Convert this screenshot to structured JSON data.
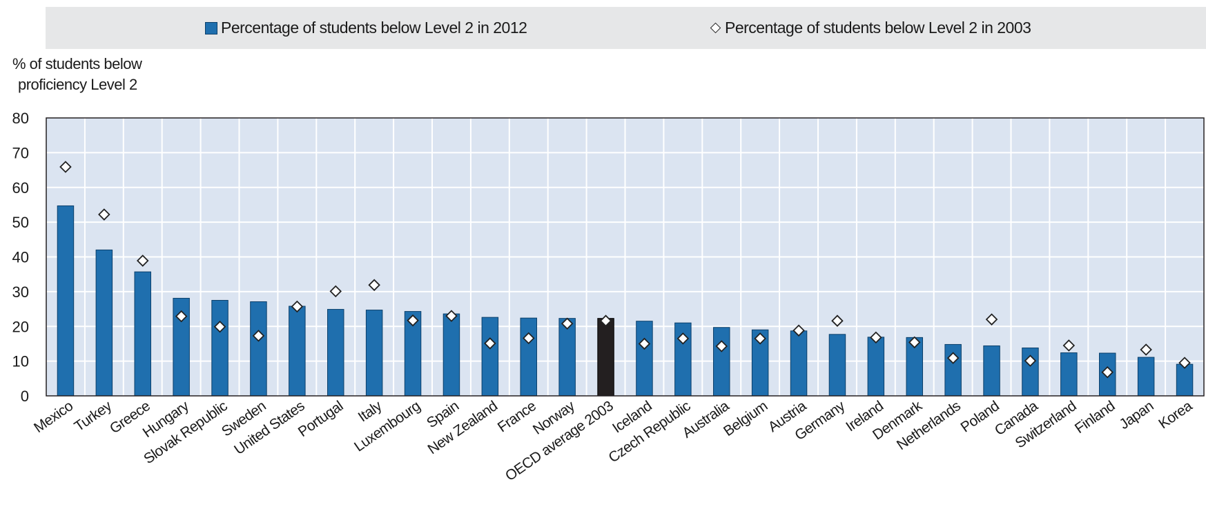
{
  "legend": {
    "series_2012": "Percentage of students below Level 2 in 2012",
    "series_2003": "Percentage of students below Level 2 in 2003"
  },
  "y_axis": {
    "label_line1": "% of students below",
    "label_line2": "proficiency Level 2"
  },
  "colors": {
    "bar": "#1f6fae",
    "bar_highlight": "#231f20",
    "plot_background": "#dbe4f1",
    "legend_background": "#e6e7e8"
  },
  "chart_data": {
    "type": "bar",
    "title": "",
    "xlabel": "",
    "ylabel": "% of students below proficiency Level 2",
    "ylim": [
      0,
      80
    ],
    "yticks": [
      0,
      10,
      20,
      30,
      40,
      50,
      60,
      70,
      80
    ],
    "grid": true,
    "legend_position": "top",
    "highlight_category": "OECD average 2003",
    "categories": [
      "Mexico",
      "Turkey",
      "Greece",
      "Hungary",
      "Slovak Republic",
      "Sweden",
      "United States",
      "Portugal",
      "Italy",
      "Luxembourg",
      "Spain",
      "New Zealand",
      "France",
      "Norway",
      "OECD average 2003",
      "Iceland",
      "Czech Republic",
      "Australia",
      "Belgium",
      "Austria",
      "Germany",
      "Ireland",
      "Denmark",
      "Netherlands",
      "Poland",
      "Canada",
      "Switzerland",
      "Finland",
      "Japan",
      "Korea"
    ],
    "series": [
      {
        "name": "Percentage of students below Level 2 in 2012",
        "marker": "bar",
        "values": [
          54.7,
          42.0,
          35.7,
          28.1,
          27.5,
          27.1,
          25.8,
          24.9,
          24.7,
          24.3,
          23.6,
          22.6,
          22.4,
          22.3,
          22.3,
          21.5,
          21.0,
          19.7,
          19.0,
          18.7,
          17.7,
          16.9,
          16.8,
          14.8,
          14.4,
          13.8,
          12.4,
          12.3,
          11.1,
          9.1
        ]
      },
      {
        "name": "Percentage of students below Level 2 in 2003",
        "marker": "diamond",
        "values": [
          65.9,
          52.2,
          38.9,
          22.9,
          19.9,
          17.3,
          25.7,
          30.1,
          31.9,
          21.7,
          23.0,
          15.1,
          16.6,
          20.8,
          21.6,
          15.0,
          16.5,
          14.3,
          16.5,
          18.8,
          21.6,
          16.8,
          15.4,
          10.9,
          22.0,
          10.1,
          14.5,
          6.8,
          13.3,
          9.5
        ]
      }
    ]
  }
}
